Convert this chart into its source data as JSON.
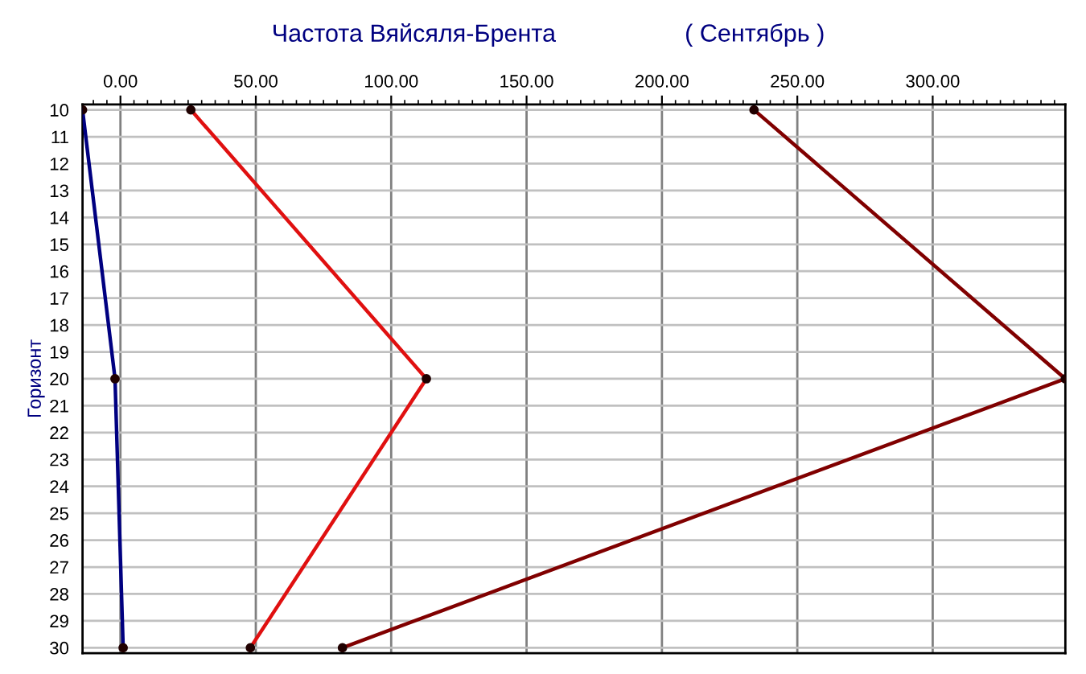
{
  "chart_data": {
    "type": "line",
    "title": "Частота Вяйсяля-Брента",
    "subtitle": "( Сентябрь )",
    "ylabel": "Горизонт",
    "orientation": "horizontal",
    "x": [
      10,
      20,
      30
    ],
    "series": [
      {
        "color": "#000080",
        "values": [
          -14,
          -2,
          1
        ]
      },
      {
        "color": "#e01010",
        "values": [
          26,
          113,
          48
        ]
      },
      {
        "color": "#800000",
        "values": [
          234,
          349,
          82
        ]
      }
    ],
    "xlim": [
      -14,
      349
    ],
    "xticks": [
      {
        "value": 0,
        "label": "0.00"
      },
      {
        "value": 50,
        "label": "50.00"
      },
      {
        "value": 100,
        "label": "100.00"
      },
      {
        "value": 150,
        "label": "150.00"
      },
      {
        "value": 200,
        "label": "200.00"
      },
      {
        "value": 250,
        "label": "250.00"
      },
      {
        "value": 300,
        "label": "300.00"
      }
    ],
    "ylim": [
      30.2,
      9.8
    ],
    "yticks": [
      10,
      11,
      12,
      13,
      14,
      15,
      16,
      17,
      18,
      19,
      20,
      21,
      22,
      23,
      24,
      25,
      26,
      27,
      28,
      29,
      30
    ],
    "grid": true,
    "marker": "circle",
    "line_style": "solid"
  }
}
